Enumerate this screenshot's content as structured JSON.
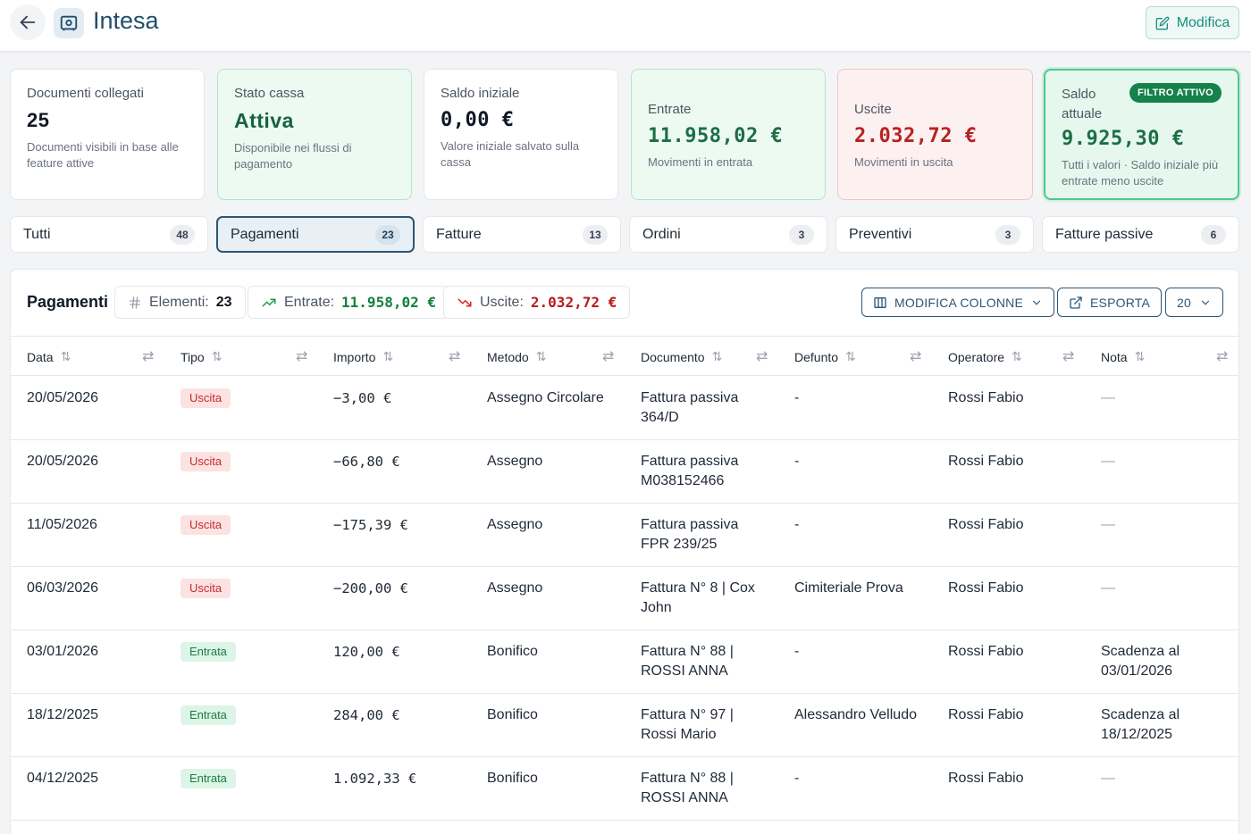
{
  "header": {
    "title": "Intesa",
    "edit_label": "Modifica"
  },
  "cards": [
    {
      "label": "Documenti collegati",
      "value": "25",
      "sub": "Documenti visibili in base alle feature attive"
    },
    {
      "label": "Stato cassa",
      "value": "Attiva",
      "sub": "Disponibile nei flussi di pagamento"
    },
    {
      "label": "Saldo iniziale",
      "value": "0,00 €",
      "sub": "Valore iniziale salvato sulla cassa"
    },
    {
      "label": "Entrate",
      "value": "11.958,02 €",
      "sub": "Movimenti in entrata"
    },
    {
      "label": "Uscite",
      "value": "2.032,72 €",
      "sub": "Movimenti in uscita"
    },
    {
      "label": "Saldo attuale",
      "value": "9.925,30 €",
      "sub": "Tutti i valori · Saldo iniziale più entrate meno uscite",
      "badge": "FILTRO ATTIVO"
    }
  ],
  "tabs": [
    {
      "label": "Tutti",
      "count": "48"
    },
    {
      "label": "Pagamenti",
      "count": "23"
    },
    {
      "label": "Fatture",
      "count": "13"
    },
    {
      "label": "Ordini",
      "count": "3"
    },
    {
      "label": "Preventivi",
      "count": "3"
    },
    {
      "label": "Fatture passive",
      "count": "6"
    }
  ],
  "panel": {
    "title": "Pagamenti",
    "elements_label": "Elementi:",
    "elements_count": "23",
    "entrate_label": "Entrate:",
    "entrate_value": "11.958,02 €",
    "uscite_label": "Uscite:",
    "uscite_value": "2.032,72 €",
    "columns_button": "MODIFICA COLONNE",
    "export_button": "ESPORTA",
    "page_size": "20"
  },
  "table": {
    "columns": [
      "Data",
      "Tipo",
      "Importo",
      "Metodo",
      "Documento",
      "Defunto",
      "Operatore",
      "Nota"
    ],
    "rows": [
      {
        "data": "20/05/2026",
        "tipo": "Uscita",
        "importo": "−3,00 €",
        "metodo": "Assegno Circolare",
        "doc1": "Fattura passiva",
        "doc2": "364/D",
        "defunto": "-",
        "operatore": "Rossi Fabio",
        "nota1": "—",
        "nota2": ""
      },
      {
        "data": "20/05/2026",
        "tipo": "Uscita",
        "importo": "−66,80 €",
        "metodo": "Assegno",
        "doc1": "Fattura passiva",
        "doc2": "M038152466",
        "defunto": "-",
        "operatore": "Rossi Fabio",
        "nota1": "—",
        "nota2": ""
      },
      {
        "data": "11/05/2026",
        "tipo": "Uscita",
        "importo": "−175,39 €",
        "metodo": "Assegno",
        "doc1": "Fattura passiva",
        "doc2": "FPR 239/25",
        "defunto": "-",
        "operatore": "Rossi Fabio",
        "nota1": "—",
        "nota2": ""
      },
      {
        "data": "06/03/2026",
        "tipo": "Uscita",
        "importo": "−200,00 €",
        "metodo": "Assegno",
        "doc1": "Fattura N° 8 | Cox",
        "doc2": "John",
        "defunto": "Cimiteriale Prova",
        "operatore": "Rossi Fabio",
        "nota1": "—",
        "nota2": ""
      },
      {
        "data": "03/01/2026",
        "tipo": "Entrata",
        "importo": "120,00 €",
        "metodo": "Bonifico",
        "doc1": "Fattura N° 88 |",
        "doc2": "ROSSI ANNA",
        "defunto": "-",
        "operatore": "Rossi Fabio",
        "nota1": "Scadenza al",
        "nota2": "03/01/2026"
      },
      {
        "data": "18/12/2025",
        "tipo": "Entrata",
        "importo": "284,00 €",
        "metodo": "Bonifico",
        "doc1": "Fattura N° 97 |",
        "doc2": "Rossi Mario",
        "defunto": "Alessandro Velludo",
        "operatore": "Rossi Fabio",
        "nota1": "Scadenza al",
        "nota2": "18/12/2025"
      },
      {
        "data": "04/12/2025",
        "tipo": "Entrata",
        "importo": "1.092,33 €",
        "metodo": "Bonifico",
        "doc1": "Fattura N° 88 |",
        "doc2": "ROSSI ANNA",
        "defunto": "-",
        "operatore": "Rossi Fabio",
        "nota1": "—",
        "nota2": ""
      }
    ]
  }
}
